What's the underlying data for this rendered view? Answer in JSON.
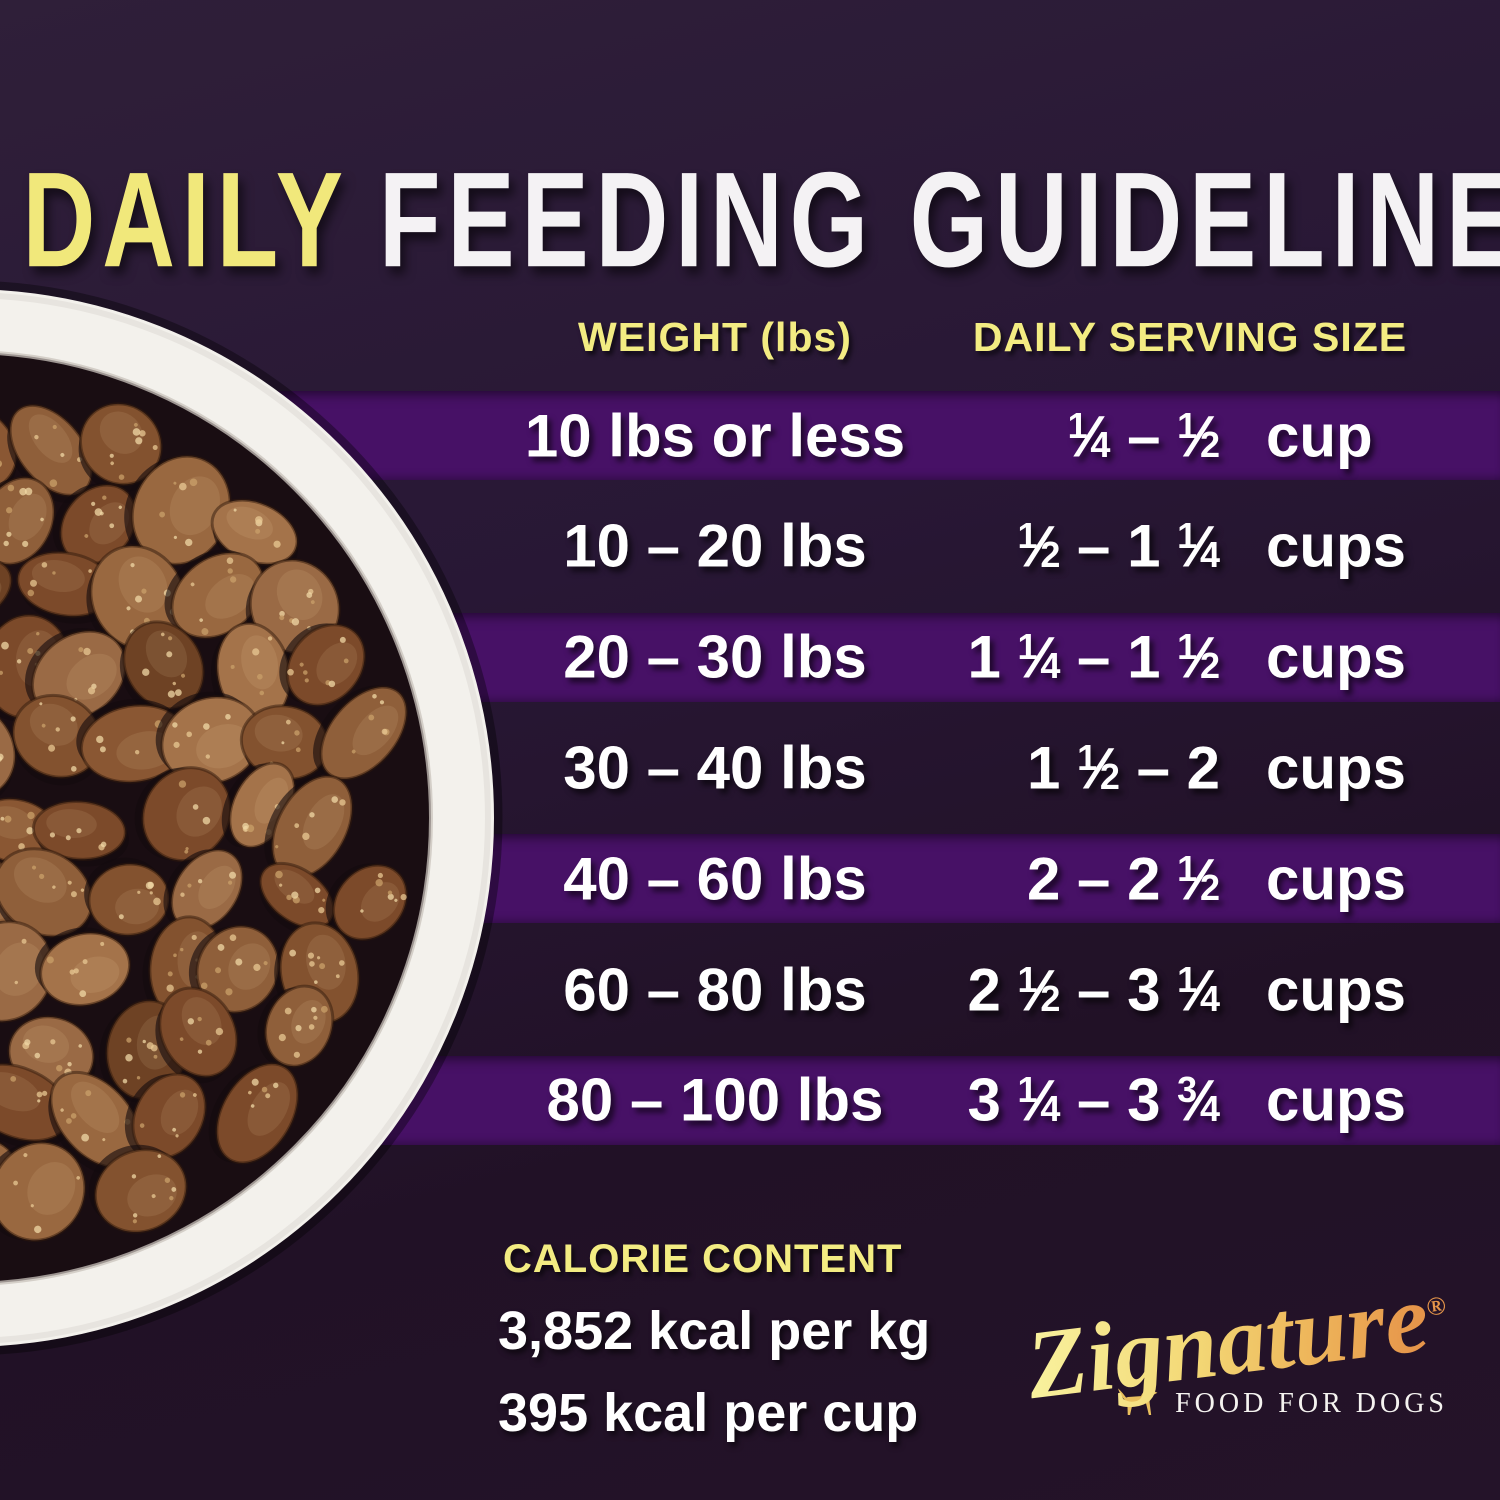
{
  "title": {
    "highlight": "DAILY",
    "rest": "FEEDING GUIDELINES"
  },
  "table": {
    "headers": {
      "weight": "WEIGHT (lbs)",
      "serving": "DAILY SERVING SIZE"
    },
    "rows": [
      {
        "weight": "10 lbs or less",
        "range": "¼ – ½",
        "unit": "cup"
      },
      {
        "weight": "10 – 20 lbs",
        "range": "½ – 1 ¼",
        "unit": "cups"
      },
      {
        "weight": "20 – 30 lbs",
        "range": "1 ¼ – 1 ½",
        "unit": "cups"
      },
      {
        "weight": "30 – 40 lbs",
        "range": "1 ½ – 2",
        "unit": "cups"
      },
      {
        "weight": "40 – 60 lbs",
        "range": "2 – 2 ½",
        "unit": "cups"
      },
      {
        "weight": "60 – 80 lbs",
        "range": "2 ½ – 3 ¼",
        "unit": "cups"
      },
      {
        "weight": "80 – 100 lbs",
        "range": "3 ¼ – 3 ¾",
        "unit": "cups"
      }
    ]
  },
  "calorie": {
    "heading": "CALORIE CONTENT",
    "per_kg": "3,852 kcal per kg",
    "per_cup": "395 kcal per cup"
  },
  "brand": {
    "name": "Zignature",
    "registered": "®",
    "tagline": "FOOD FOR DOGS"
  },
  "colors": {
    "background": "#241329",
    "stripe_purple": "#471166",
    "accent_yellow": "#f3ec82",
    "text_white": "#ffffff",
    "logo_gradient_start": "#f8f09c",
    "logo_gradient_end": "#e6954a",
    "bowl_rim": "#f3f1ec",
    "kibble_brown": "#8a5733"
  },
  "chart_data": {
    "type": "table",
    "title": "DAILY FEEDING GUIDELINES",
    "columns": [
      "WEIGHT (lbs)",
      "DAILY SERVING SIZE"
    ],
    "rows": [
      [
        "10 lbs or less",
        "¼ – ½ cup"
      ],
      [
        "10 – 20 lbs",
        "½ – 1 ¼ cups"
      ],
      [
        "20 – 30 lbs",
        "1 ¼ – 1 ½ cups"
      ],
      [
        "30 – 40 lbs",
        "1 ½ – 2 cups"
      ],
      [
        "40 – 60 lbs",
        "2 – 2 ½ cups"
      ],
      [
        "60 – 80 lbs",
        "2 ½ – 3 ¼ cups"
      ],
      [
        "80 – 100 lbs",
        "3 ¼ – 3 ¾ cups"
      ]
    ],
    "annotations": [
      "CALORIE CONTENT",
      "3,852 kcal per kg",
      "395 kcal per cup"
    ],
    "layout_hints": {
      "striped_rows": [
        0,
        2,
        4,
        6
      ],
      "stripe_color": "#471166",
      "grid": false
    }
  }
}
